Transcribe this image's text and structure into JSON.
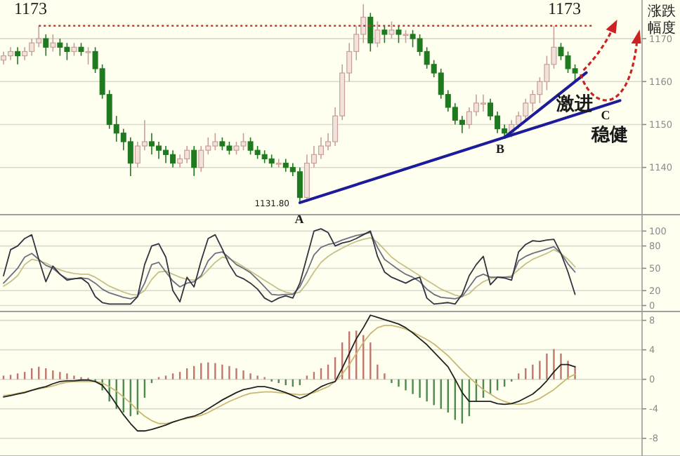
{
  "chart_data": [
    {
      "type": "candlestick",
      "categories": [
        null,
        null,
        null,
        null,
        null,
        null,
        null,
        null,
        null,
        null,
        null,
        null,
        null,
        null,
        null,
        null,
        null,
        null,
        null,
        null,
        null,
        null,
        null,
        null,
        null,
        null,
        null,
        null,
        null,
        null,
        null,
        null,
        null,
        null,
        null,
        null,
        null,
        null,
        null,
        null,
        null,
        null,
        null,
        null,
        null,
        null,
        null,
        null,
        null,
        null,
        null,
        null,
        null,
        null,
        null,
        null,
        null,
        null,
        null,
        null,
        null,
        null,
        null,
        null,
        null,
        null,
        null,
        null,
        null,
        null,
        null,
        null,
        null,
        null,
        null,
        null,
        null,
        null,
        null,
        null,
        null,
        null,
        null,
        null,
        null,
        null,
        null,
        null,
        null,
        null,
        null
      ],
      "ohlc": [
        [
          1165,
          1167,
          1164,
          1166
        ],
        [
          1166,
          1168,
          1165,
          1167
        ],
        [
          1167,
          1168,
          1164,
          1166
        ],
        [
          1166,
          1168,
          1165,
          1167
        ],
        [
          1167,
          1170,
          1166,
          1169
        ],
        [
          1169,
          1173,
          1168,
          1170
        ],
        [
          1170,
          1171,
          1166,
          1168
        ],
        [
          1168,
          1171,
          1167,
          1169
        ],
        [
          1169,
          1170,
          1166,
          1168
        ],
        [
          1168,
          1169,
          1165,
          1167
        ],
        [
          1167,
          1169,
          1166,
          1168
        ],
        [
          1168,
          1169,
          1166,
          1167
        ],
        [
          1167,
          1168,
          1164,
          1167
        ],
        [
          1167,
          1168,
          1162,
          1163
        ],
        [
          1163,
          1164,
          1156,
          1157
        ],
        [
          1157,
          1158,
          1149,
          1150
        ],
        [
          1150,
          1152,
          1146,
          1148
        ],
        [
          1148,
          1149,
          1144,
          1146
        ],
        [
          1146,
          1147,
          1138,
          1141
        ],
        [
          1141,
          1146,
          1140,
          1145
        ],
        [
          1145,
          1151,
          1144,
          1146
        ],
        [
          1146,
          1148,
          1143,
          1145
        ],
        [
          1145,
          1146,
          1142,
          1144
        ],
        [
          1144,
          1145,
          1141,
          1143
        ],
        [
          1143,
          1144,
          1140,
          1141
        ],
        [
          1141,
          1143,
          1140,
          1142
        ],
        [
          1142,
          1145,
          1141,
          1144
        ],
        [
          1144,
          1145,
          1138,
          1140
        ],
        [
          1140,
          1145,
          1139,
          1144
        ],
        [
          1144,
          1147,
          1143,
          1145
        ],
        [
          1145,
          1148,
          1144,
          1146
        ],
        [
          1146,
          1147,
          1144,
          1145
        ],
        [
          1145,
          1146,
          1143,
          1144
        ],
        [
          1144,
          1146,
          1143,
          1145
        ],
        [
          1145,
          1148,
          1144,
          1146
        ],
        [
          1146,
          1147,
          1143,
          1144
        ],
        [
          1144,
          1145,
          1142,
          1143
        ],
        [
          1143,
          1144,
          1141,
          1142
        ],
        [
          1142,
          1143,
          1140,
          1141
        ],
        [
          1141,
          1142,
          1140,
          1141
        ],
        [
          1141,
          1142,
          1139,
          1140
        ],
        [
          1140,
          1141,
          1138,
          1139
        ],
        [
          1139,
          1140,
          1131.8,
          1133
        ],
        [
          1133,
          1143,
          1132,
          1141
        ],
        [
          1141,
          1145,
          1140,
          1143
        ],
        [
          1143,
          1147,
          1142,
          1145
        ],
        [
          1145,
          1148,
          1144,
          1146
        ],
        [
          1146,
          1154,
          1145,
          1152
        ],
        [
          1152,
          1164,
          1151,
          1162
        ],
        [
          1162,
          1169,
          1160,
          1167
        ],
        [
          1167,
          1173,
          1165,
          1171
        ],
        [
          1171,
          1178,
          1169,
          1175
        ],
        [
          1175,
          1176,
          1167,
          1169
        ],
        [
          1169,
          1174,
          1168,
          1172
        ],
        [
          1172,
          1173,
          1169,
          1171
        ],
        [
          1171,
          1174,
          1170,
          1172
        ],
        [
          1172,
          1173,
          1169,
          1171
        ],
        [
          1171,
          1172,
          1169,
          1171
        ],
        [
          1171,
          1172,
          1168,
          1170
        ],
        [
          1170,
          1171,
          1166,
          1167
        ],
        [
          1167,
          1168,
          1163,
          1164
        ],
        [
          1164,
          1165,
          1161,
          1162
        ],
        [
          1162,
          1163,
          1156,
          1157
        ],
        [
          1157,
          1158,
          1153,
          1154
        ],
        [
          1154,
          1155,
          1150,
          1151
        ],
        [
          1151,
          1152,
          1148,
          1150
        ],
        [
          1150,
          1154,
          1149,
          1153
        ],
        [
          1153,
          1157,
          1152,
          1155
        ],
        [
          1155,
          1157,
          1153,
          1155
        ],
        [
          1155,
          1156,
          1151,
          1152
        ],
        [
          1152,
          1153,
          1148,
          1149
        ],
        [
          1149,
          1150,
          1147,
          1148
        ],
        [
          1148,
          1151,
          1147,
          1150
        ],
        [
          1150,
          1153,
          1149,
          1152
        ],
        [
          1152,
          1156,
          1151,
          1155
        ],
        [
          1155,
          1158,
          1153,
          1157
        ],
        [
          1157,
          1161,
          1155,
          1160
        ],
        [
          1160,
          1166,
          1158,
          1164
        ],
        [
          1164,
          1173,
          1163,
          1168
        ],
        [
          1168,
          1169,
          1165,
          1166
        ],
        [
          1166,
          1167,
          1162,
          1163
        ],
        [
          1163,
          1164,
          1160,
          1162
        ],
        null,
        null,
        null,
        null,
        null,
        null,
        null,
        null,
        null
      ],
      "ylim": [
        1129,
        1179
      ],
      "yticks": [
        1140,
        1150,
        1160,
        1170
      ],
      "grid": "y",
      "tick_labels": "y",
      "ref_lines": [
        {
          "axis": "y",
          "value": 1173,
          "color": "#c0392b",
          "line_style": "dotted"
        }
      ],
      "annotations": [
        "1173",
        "1173",
        "1131.80",
        "A",
        "B",
        "C",
        "激进",
        "稳健",
        "涨跌",
        "幅度"
      ]
    },
    {
      "type": "line",
      "categories": [
        null,
        null,
        null,
        null,
        null,
        null,
        null,
        null,
        null,
        null,
        null,
        null,
        null,
        null,
        null,
        null,
        null,
        null,
        null,
        null,
        null,
        null,
        null,
        null,
        null,
        null,
        null,
        null,
        null,
        null,
        null,
        null,
        null,
        null,
        null,
        null,
        null,
        null,
        null,
        null,
        null,
        null,
        null,
        null,
        null,
        null,
        null,
        null,
        null,
        null,
        null,
        null,
        null,
        null,
        null,
        null,
        null,
        null,
        null,
        null,
        null,
        null,
        null,
        null,
        null,
        null,
        null,
        null,
        null,
        null,
        null,
        null,
        null,
        null,
        null,
        null,
        null,
        null,
        null,
        null,
        null,
        null,
        null,
        null,
        null,
        null,
        null,
        null,
        null,
        null,
        null
      ],
      "series": [
        {
          "color": "#c8c088",
          "values": [
            26,
            32,
            40,
            55,
            62,
            60,
            57,
            52,
            48,
            45,
            43,
            42,
            42,
            38,
            32,
            26,
            22,
            18,
            15,
            14,
            20,
            35,
            45,
            46,
            42,
            38,
            35,
            34,
            38,
            48,
            58,
            65,
            63,
            58,
            52,
            46,
            40,
            34,
            28,
            22,
            18,
            16,
            18,
            30,
            45,
            58,
            66,
            72,
            77,
            82,
            86,
            89,
            91,
            85,
            75,
            65,
            58,
            52,
            46,
            40,
            34,
            28,
            22,
            18,
            14,
            12,
            16,
            25,
            32,
            36,
            38,
            38,
            40,
            48,
            56,
            62,
            66,
            70,
            75,
            70,
            62,
            52,
            null,
            null,
            null,
            null,
            null,
            null,
            null,
            null,
            null
          ]
        },
        {
          "color": "#6e6e80",
          "values": [
            30,
            40,
            50,
            65,
            70,
            62,
            54,
            50,
            42,
            36,
            36,
            37,
            36,
            30,
            22,
            17,
            14,
            11,
            9,
            12,
            30,
            55,
            58,
            45,
            33,
            25,
            30,
            32,
            40,
            60,
            70,
            72,
            64,
            55,
            50,
            44,
            35,
            25,
            15,
            14,
            15,
            15,
            25,
            45,
            68,
            78,
            82,
            84,
            88,
            91,
            94,
            96,
            98,
            78,
            62,
            55,
            48,
            42,
            38,
            32,
            22,
            15,
            11,
            10,
            9,
            12,
            25,
            38,
            42,
            38,
            38,
            38,
            38,
            60,
            66,
            70,
            73,
            76,
            79,
            70,
            56,
            45,
            null,
            null,
            null,
            null,
            null,
            null,
            null,
            null,
            null
          ]
        },
        {
          "color": "#333340",
          "values": [
            40,
            75,
            80,
            90,
            95,
            62,
            32,
            53,
            42,
            34,
            36,
            37,
            30,
            12,
            4,
            2,
            2,
            2,
            2,
            12,
            55,
            80,
            83,
            65,
            20,
            5,
            38,
            25,
            60,
            90,
            95,
            76,
            55,
            40,
            36,
            30,
            22,
            10,
            5,
            10,
            13,
            10,
            30,
            65,
            100,
            103,
            98,
            80,
            84,
            86,
            90,
            95,
            100,
            66,
            45,
            38,
            34,
            30,
            35,
            38,
            10,
            2,
            3,
            4,
            2,
            15,
            40,
            55,
            66,
            28,
            38,
            37,
            34,
            72,
            82,
            87,
            86,
            88,
            89,
            70,
            45,
            15,
            null,
            null,
            null,
            null,
            null,
            null,
            null,
            null,
            null
          ]
        }
      ],
      "ylim": [
        -8,
        122
      ],
      "yticks": [
        0,
        20,
        50,
        80,
        100
      ],
      "grid": "y",
      "tick_labels": "y"
    },
    {
      "type": "bar",
      "categories": [
        null,
        null,
        null,
        null,
        null,
        null,
        null,
        null,
        null,
        null,
        null,
        null,
        null,
        null,
        null,
        null,
        null,
        null,
        null,
        null,
        null,
        null,
        null,
        null,
        null,
        null,
        null,
        null,
        null,
        null,
        null,
        null,
        null,
        null,
        null,
        null,
        null,
        null,
        null,
        null,
        null,
        null,
        null,
        null,
        null,
        null,
        null,
        null,
        null,
        null,
        null,
        null,
        null,
        null,
        null,
        null,
        null,
        null,
        null,
        null,
        null,
        null,
        null,
        null,
        null,
        null,
        null,
        null,
        null,
        null,
        null,
        null,
        null,
        null,
        null,
        null,
        null,
        null,
        null,
        null,
        null,
        null,
        null,
        null,
        null,
        null,
        null,
        null,
        null,
        null,
        null
      ],
      "series": [
        {
          "color": "#c0766e",
          "values": [
            0.5,
            0.6,
            0.8,
            1.0,
            1.5,
            1.7,
            1.5,
            1.2,
            1.0,
            0.8,
            0.5,
            0.3,
            0.2,
            null,
            null,
            null,
            null,
            null,
            null,
            null,
            null,
            null,
            0.3,
            0.5,
            0.8,
            1,
            1.5,
            1.8,
            2.2,
            2.3,
            2.2,
            2,
            1.8,
            1.5,
            1.2,
            0.8,
            0.5,
            0.3,
            null,
            null,
            null,
            null,
            null,
            0.5,
            1,
            1.5,
            2,
            3,
            5,
            6.5,
            6.6,
            6,
            5,
            2,
            0.8,
            null,
            null,
            null,
            null,
            null,
            null,
            null,
            null,
            null,
            null,
            null,
            null,
            null,
            null,
            null,
            null,
            null,
            null,
            0.8,
            1.5,
            2,
            2.5,
            3.5,
            4.1,
            3.5,
            2.5,
            1.8,
            null,
            null,
            null,
            null,
            null,
            null,
            null,
            null,
            null
          ]
        },
        {
          "color": "#4e8a4e",
          "values": [
            null,
            null,
            null,
            null,
            null,
            null,
            null,
            null,
            null,
            null,
            null,
            null,
            null,
            -0.3,
            -1.5,
            -3,
            -4,
            -4.5,
            -5,
            -4.8,
            -2.5,
            -0.5,
            null,
            null,
            null,
            null,
            null,
            null,
            null,
            null,
            null,
            null,
            null,
            null,
            null,
            null,
            null,
            null,
            -0.3,
            -0.5,
            -0.8,
            -1,
            -0.8,
            null,
            null,
            null,
            null,
            null,
            null,
            null,
            null,
            null,
            null,
            null,
            null,
            -0.5,
            -1,
            -1.5,
            -2,
            -2.5,
            -3,
            -3.5,
            -4,
            -4.5,
            -5.5,
            -6,
            -5,
            -3,
            -2.5,
            -2,
            -1.5,
            -1,
            -0.3,
            null,
            null,
            null,
            null,
            null,
            null,
            null,
            null,
            null,
            null,
            null,
            null,
            null,
            null,
            null,
            null,
            null,
            null
          ]
        },
        {
          "type": "line",
          "color": "#c8b870",
          "values": [
            -2.2,
            -2.1,
            -1.9,
            -1.7,
            -1.5,
            -1.3,
            -1.1,
            -0.9,
            -0.6,
            -0.4,
            -0.3,
            -0.3,
            -0.3,
            -0.3,
            -0.5,
            -1,
            -1.6,
            -2.4,
            -3.2,
            -4.2,
            -5,
            -5.6,
            -6,
            -6,
            -5.8,
            -5.5,
            -5.3,
            -5.1,
            -4.9,
            -4.5,
            -4,
            -3.5,
            -3,
            -2.6,
            -2.2,
            -1.9,
            -1.8,
            -1.7,
            -1.7,
            -1.8,
            -1.9,
            -2,
            -2.1,
            -2,
            -1.8,
            -1.4,
            -1,
            -0.3,
            0.7,
            2,
            3.5,
            5,
            6.2,
            7,
            7.3,
            7.3,
            7.1,
            6.8,
            6.4,
            5.9,
            5.4,
            4.8,
            4,
            3.2,
            2.2,
            1.2,
            0.3,
            -0.6,
            -1.4,
            -2,
            -2.6,
            -3,
            -3.3,
            -3.4,
            -3.3,
            -3,
            -2.6,
            -2,
            -1.4,
            -0.6,
            0.2,
            0.7,
            null,
            null,
            null,
            null,
            null,
            null,
            null,
            null,
            null
          ]
        },
        {
          "type": "line",
          "color": "#222222",
          "values": [
            -2.4,
            -2.2,
            -2,
            -1.8,
            -1.5,
            -1.2,
            -1,
            -0.6,
            -0.3,
            -0.2,
            -0.2,
            -0.1,
            -0.1,
            -0.3,
            -0.8,
            -2,
            -3.4,
            -4.8,
            -6,
            -7,
            -7,
            -6.8,
            -6.5,
            -6.2,
            -5.8,
            -5.5,
            -5.2,
            -5,
            -4.6,
            -4,
            -3.4,
            -2.8,
            -2.3,
            -1.8,
            -1.4,
            -1.2,
            -1,
            -1,
            -1.2,
            -1.5,
            -1.8,
            -2.2,
            -2.6,
            -2.2,
            -1.6,
            -1,
            -0.6,
            -0.3,
            1.5,
            3.5,
            5.5,
            7,
            8.7,
            8.4,
            8.1,
            7.8,
            7.5,
            7,
            6.3,
            5.5,
            4.7,
            3.7,
            2.7,
            1.7,
            0,
            -1.8,
            -3,
            -3,
            -3,
            -3,
            -3.3,
            -3.4,
            -3.3,
            -3,
            -2.5,
            -2,
            -1.2,
            -0.2,
            1,
            2,
            2,
            1.7,
            null,
            null,
            null,
            null,
            null,
            null,
            null,
            null,
            null
          ]
        }
      ],
      "ylim": [
        -10.4,
        9.2
      ],
      "yticks": [
        -8,
        -4,
        0,
        4,
        8
      ],
      "grid": "y",
      "tick_labels": "y"
    }
  ]
}
